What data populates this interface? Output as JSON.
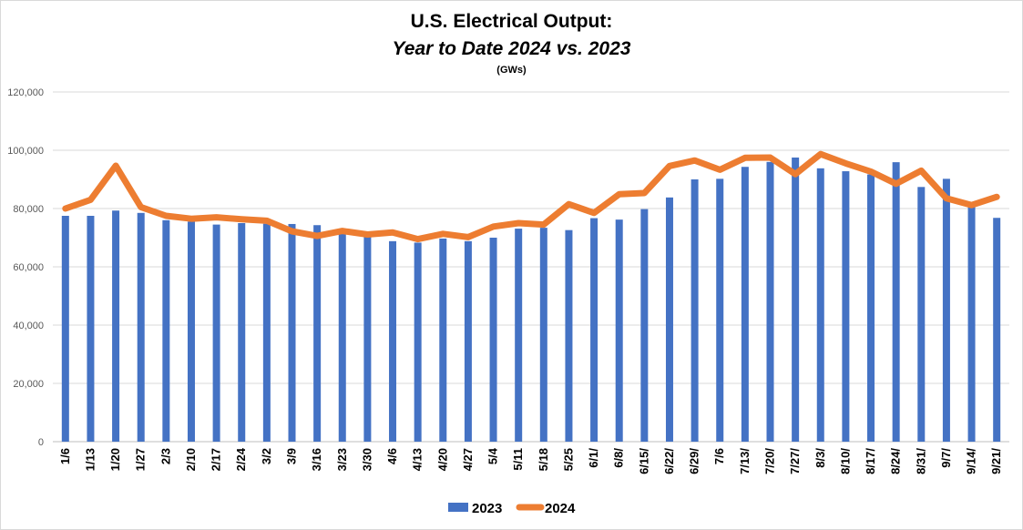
{
  "chart_data": {
    "type": "bar+line",
    "title": "U.S. Electrical Output:",
    "subtitle": "Year to Date 2024 vs. 2023",
    "unit_label": "(GWs)",
    "xlabel": "",
    "ylabel": "",
    "ylim": [
      0,
      120000
    ],
    "yticks": [
      0,
      20000,
      40000,
      60000,
      80000,
      100000,
      120000
    ],
    "ytick_labels": [
      "0",
      "20,000",
      "40,000",
      "60,000",
      "80,000",
      "100,000",
      "120,000"
    ],
    "grid": true,
    "legend_position": "bottom",
    "categories": [
      "1/6",
      "1/13",
      "1/20",
      "1/27",
      "2/3",
      "2/10",
      "2/17",
      "2/24",
      "3/2",
      "3/9",
      "3/16",
      "3/23",
      "3/30",
      "4/6",
      "4/13",
      "4/20",
      "4/27",
      "5/4",
      "5/11",
      "5/18",
      "5/25",
      "6/1/",
      "6/8/",
      "6/15/",
      "6/22/",
      "6/29/",
      "7/6",
      "7/13/",
      "7/20/",
      "7/27/",
      "8/3/",
      "8/10/",
      "8/17/",
      "8/24/",
      "8/31/",
      "9/7/",
      "9/14/",
      "9/21/"
    ],
    "series": [
      {
        "name": "2023",
        "type": "bar",
        "color": "#4472c4",
        "values": [
          77500,
          77500,
          79300,
          78500,
          76000,
          75500,
          74500,
          75000,
          74800,
          74700,
          74300,
          72200,
          70800,
          68800,
          68300,
          69700,
          68800,
          70000,
          73100,
          73400,
          72600,
          76700,
          76200,
          79800,
          83800,
          90000,
          90200,
          94300,
          96000,
          97500,
          93800,
          92800,
          91700,
          95900,
          87400,
          90200,
          81000,
          76800
        ]
      },
      {
        "name": "2024",
        "type": "line",
        "color": "#ed7d31",
        "values": [
          80000,
          83000,
          94700,
          80500,
          77500,
          76500,
          77000,
          76300,
          75800,
          72200,
          70600,
          72300,
          71100,
          71800,
          69500,
          71300,
          70200,
          73800,
          75000,
          74500,
          81500,
          78500,
          84900,
          85300,
          94600,
          96500,
          93300,
          97400,
          97500,
          91800,
          98700,
          95500,
          92700,
          88500,
          93000,
          83500,
          81200,
          84000
        ]
      }
    ]
  }
}
